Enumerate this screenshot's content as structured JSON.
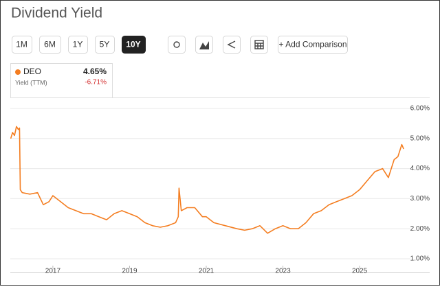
{
  "toolbar": {
    "ranges": [
      "1M",
      "6M",
      "1Y",
      "5Y",
      "10Y"
    ],
    "active": "10Y",
    "comparison": "+ Add Comparison"
  },
  "chart_data": {
    "type": "line",
    "title": "Dividend Yield",
    "summary": {
      "value": "4.65%",
      "label": "Yield (TTM)",
      "change": "-6.71%"
    },
    "x": [
      2015.9,
      2015.95,
      2016.0,
      2016.05,
      2016.1,
      2016.13,
      2016.15,
      2016.2,
      2016.4,
      2016.6,
      2016.75,
      2016.9,
      2017.0,
      2017.2,
      2017.4,
      2017.6,
      2017.8,
      2018.0,
      2018.2,
      2018.4,
      2018.6,
      2018.8,
      2019.0,
      2019.2,
      2019.4,
      2019.6,
      2019.8,
      2020.0,
      2020.2,
      2020.27,
      2020.29,
      2020.35,
      2020.5,
      2020.7,
      2020.9,
      2021.0,
      2021.2,
      2021.5,
      2021.8,
      2022.0,
      2022.2,
      2022.4,
      2022.6,
      2022.8,
      2023.0,
      2023.2,
      2023.4,
      2023.6,
      2023.8,
      2024.0,
      2024.2,
      2024.4,
      2024.6,
      2024.8,
      2025.0,
      2025.2,
      2025.4,
      2025.6,
      2025.75,
      2025.9,
      2026.0,
      2026.1,
      2026.15
    ],
    "series": [
      {
        "name": "DEO",
        "color": "#f47d20",
        "values": [
          5.0,
          5.2,
          5.1,
          5.4,
          5.3,
          5.35,
          3.3,
          3.2,
          3.15,
          3.2,
          2.8,
          2.9,
          3.1,
          2.9,
          2.7,
          2.6,
          2.5,
          2.5,
          2.4,
          2.3,
          2.5,
          2.6,
          2.5,
          2.4,
          2.2,
          2.1,
          2.05,
          2.1,
          2.2,
          2.4,
          3.35,
          2.6,
          2.7,
          2.7,
          2.4,
          2.4,
          2.2,
          2.1,
          2.0,
          1.95,
          2.0,
          2.1,
          1.85,
          2.0,
          2.1,
          2.0,
          2.0,
          2.2,
          2.5,
          2.6,
          2.8,
          2.9,
          3.0,
          3.1,
          3.3,
          3.6,
          3.9,
          4.0,
          3.7,
          4.3,
          4.4,
          4.8,
          4.65
        ]
      }
    ],
    "xlim": [
      2015.89,
      2026.2
    ],
    "xticks": [
      2017,
      2019,
      2021,
      2023,
      2025
    ],
    "ylim": [
      1,
      6
    ],
    "yticks": [
      {
        "value": 1,
        "label": "1.00%"
      },
      {
        "value": 2,
        "label": "2.00%"
      },
      {
        "value": 3,
        "label": "3.00%"
      },
      {
        "value": 4,
        "label": "4.00%"
      },
      {
        "value": 5,
        "label": "5.00%"
      },
      {
        "value": 6,
        "label": "6.00%"
      }
    ],
    "grid": true
  }
}
